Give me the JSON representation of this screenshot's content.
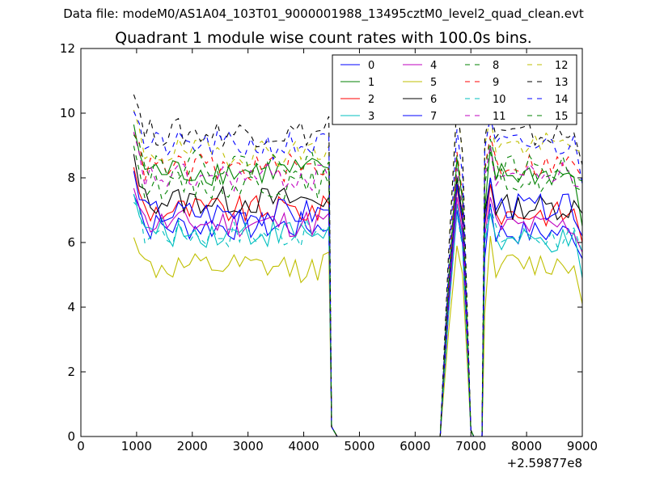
{
  "chart_data": {
    "type": "line",
    "suptitle": "Data file: modeM0/AS1A04_103T01_9000001988_13495cztM0_level2_quad_clean.evt",
    "title": "Quadrant 1 module wise count rates with 100.0s bins.",
    "xlabel": "",
    "ylabel": "",
    "x_offset_label": "+2.59877e8",
    "xlim": [
      0,
      9000
    ],
    "ylim": [
      0,
      12
    ],
    "x_ticks": [
      0,
      1000,
      2000,
      3000,
      4000,
      5000,
      6000,
      7000,
      8000,
      9000
    ],
    "y_ticks": [
      0,
      2,
      4,
      6,
      8,
      10,
      12
    ],
    "x_tick_labels": [
      "0",
      "1000",
      "2000",
      "3000",
      "4000",
      "5000",
      "6000",
      "7000",
      "8000",
      "9000"
    ],
    "y_tick_labels": [
      "0",
      "2",
      "4",
      "6",
      "8",
      "10",
      "12"
    ],
    "grid": false,
    "legend": {
      "placement": "top-right",
      "columns": 4
    },
    "series": [
      {
        "name": "0",
        "color": "#0000ff",
        "dash": false,
        "base": 6.5,
        "seg1_end": 6.4,
        "peak": 7.0,
        "seg3_start": 5.5,
        "seg3": 6.3,
        "seg3_end": 5.5
      },
      {
        "name": "1",
        "color": "#008000",
        "dash": false,
        "base": 8.2,
        "seg1_end": 8.3,
        "peak": 8.6,
        "seg3_start": 7.0,
        "seg3": 8.1,
        "seg3_end": 6.5
      },
      {
        "name": "2",
        "color": "#ff0000",
        "dash": false,
        "base": 7.0,
        "seg1_end": 7.2,
        "peak": 7.7,
        "seg3_start": 6.5,
        "seg3": 6.9,
        "seg3_end": 6.0
      },
      {
        "name": "3",
        "color": "#00bfbf",
        "dash": false,
        "base": 6.3,
        "seg1_end": 6.5,
        "peak": 7.2,
        "seg3_start": 6.0,
        "seg3": 6.0,
        "seg3_end": 4.9
      },
      {
        "name": "4",
        "color": "#bf00bf",
        "dash": false,
        "base": 6.6,
        "seg1_end": 6.9,
        "peak": 7.4,
        "seg3_start": 6.2,
        "seg3": 6.5,
        "seg3_end": 5.7
      },
      {
        "name": "5",
        "color": "#bfbf00",
        "dash": false,
        "base": 5.2,
        "seg1_end": 5.7,
        "peak": 5.9,
        "seg3_start": 3.8,
        "seg3": 5.3,
        "seg3_end": 4.1
      },
      {
        "name": "6",
        "color": "#000000",
        "dash": false,
        "base": 7.3,
        "seg1_end": 7.4,
        "peak": 8.0,
        "seg3_start": 6.9,
        "seg3": 7.1,
        "seg3_end": 6.9
      },
      {
        "name": "7",
        "color": "#0000ff",
        "dash": false,
        "base": 6.9,
        "seg1_end": 7.0,
        "peak": 7.8,
        "seg3_start": 6.6,
        "seg3": 7.1,
        "seg3_end": 6.2
      },
      {
        "name": "8",
        "color": "#008000",
        "dash": true,
        "base": 7.8,
        "seg1_end": 7.8,
        "peak": 8.1,
        "seg3_start": 7.8,
        "seg3": 7.9,
        "seg3_end": 7.6
      },
      {
        "name": "9",
        "color": "#ff0000",
        "dash": true,
        "base": 8.3,
        "seg1_end": 8.3,
        "peak": 8.8,
        "seg3_start": 8.3,
        "seg3": 8.4,
        "seg3_end": 8.0
      },
      {
        "name": "10",
        "color": "#00bfbf",
        "dash": true,
        "base": 6.3,
        "seg1_end": 6.5,
        "peak": 6.9,
        "seg3_start": 6.2,
        "seg3": 6.2,
        "seg3_end": 5.7
      },
      {
        "name": "11",
        "color": "#bf00bf",
        "dash": true,
        "base": 8.0,
        "seg1_end": 8.0,
        "peak": 8.3,
        "seg3_start": 8.0,
        "seg3": 8.1,
        "seg3_end": 7.7
      },
      {
        "name": "12",
        "color": "#bfbf00",
        "dash": true,
        "base": 8.8,
        "seg1_end": 9.0,
        "peak": 10.3,
        "seg3_start": 9.0,
        "seg3": 9.0,
        "seg3_end": 8.8
      },
      {
        "name": "13",
        "color": "#000000",
        "dash": true,
        "base": 9.4,
        "seg1_end": 9.9,
        "peak": 10.3,
        "seg3_start": 9.2,
        "seg3": 9.3,
        "seg3_end": 8.4
      },
      {
        "name": "14",
        "color": "#0000ff",
        "dash": true,
        "base": 9.0,
        "seg1_end": 9.3,
        "peak": 9.5,
        "seg3_start": 8.9,
        "seg3": 9.0,
        "seg3_end": 7.8
      },
      {
        "name": "15",
        "color": "#008000",
        "dash": true,
        "base": 8.4,
        "seg1_end": 8.5,
        "peak": 8.7,
        "seg3_start": 8.2,
        "seg3": 8.3,
        "seg3_end": 7.9
      }
    ]
  }
}
